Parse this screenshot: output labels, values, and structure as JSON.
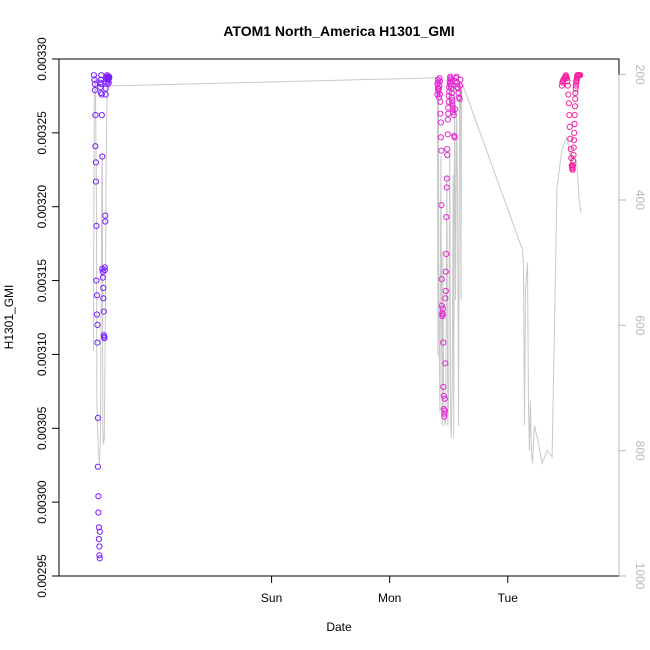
{
  "chart_data": {
    "type": "scatter",
    "title": "ATOM1 North_America H1301_GMI",
    "xlabel": "Date",
    "ylabel": "H1301_GMI",
    "x_unit": "hours since Sat 00:00",
    "xlim": [
      -19.2,
      94.6
    ],
    "ylim": [
      0.00295,
      0.0033
    ],
    "x_ticks": [
      {
        "value": 24,
        "label": "Sun"
      },
      {
        "value": 48,
        "label": "Mon"
      },
      {
        "value": 72,
        "label": "Tue"
      }
    ],
    "y_ticks": [
      0.00295,
      0.003,
      0.00305,
      0.0031,
      0.00315,
      0.0032,
      0.00325,
      0.0033
    ],
    "y_tick_labels": [
      "0.00295",
      "0.00300",
      "0.00305",
      "0.00310",
      "0.00315",
      "0.00320",
      "0.00325",
      "0.00330"
    ],
    "y2_label": "",
    "y2_lim": [
      1000,
      175
    ],
    "y2_ticks": [
      200,
      400,
      600,
      800,
      1000
    ],
    "grid": false,
    "colors": {
      "series_start": "#6a1bff",
      "series_mid": "#d42bff",
      "series_end": "#ff1f8f",
      "pressure_line": "#c8c8c8",
      "right_axis": "#b8b8b8"
    },
    "series": [
      {
        "marker": "open-circle",
        "x": [
          -12.1,
          -12.0,
          -11.9,
          -11.9,
          -11.8,
          -11.8,
          -11.7,
          -11.7,
          -11.6,
          -11.6,
          -11.5,
          -11.5,
          -11.4,
          -11.4,
          -11.3,
          -11.3,
          -11.2,
          -11.2,
          -11.1,
          -11.1,
          -11.0,
          -11.0,
          -10.9,
          -10.9,
          -10.8,
          -10.8,
          -10.7,
          -10.7,
          -10.6,
          -10.6,
          -10.5,
          -10.5,
          -10.4,
          -10.4,
          -10.3,
          -10.3,
          -10.2,
          -10.2,
          -10.1,
          -10.1,
          -10.0,
          -10.0,
          -9.9,
          -9.9,
          -9.8,
          -9.8,
          -9.7,
          -9.7,
          -9.6,
          -9.6,
          -9.5,
          -9.4,
          -9.4,
          -9.3,
          -9.3,
          -9.2,
          -9.2,
          -9.1,
          -9.0,
          -9.0,
          57.7,
          57.7,
          57.8,
          57.8,
          57.9,
          57.9,
          58.0,
          58.0,
          58.1,
          58.1,
          58.2,
          58.2,
          58.3,
          58.3,
          58.4,
          58.4,
          58.5,
          58.5,
          58.6,
          58.6,
          58.7,
          58.7,
          58.8,
          58.8,
          58.9,
          58.9,
          59.0,
          59.0,
          59.1,
          59.1,
          59.2,
          59.2,
          59.3,
          59.3,
          59.4,
          59.4,
          59.5,
          59.5,
          59.6,
          59.6,
          59.7,
          59.7,
          59.8,
          59.8,
          59.9,
          59.9,
          60.0,
          60.0,
          60.1,
          60.1,
          60.2,
          60.2,
          60.3,
          60.3,
          60.4,
          60.4,
          60.5,
          60.5,
          60.6,
          60.6,
          60.7,
          60.7,
          60.8,
          60.8,
          60.9,
          61.0,
          61.1,
          61.2,
          61.3,
          61.4,
          61.5,
          61.6,
          61.7,
          61.8,
          61.9,
          62.0,
          62.1,
          62.2,
          62.3,
          62.4,
          83.0,
          83.1,
          83.2,
          83.3,
          83.4,
          83.5,
          83.6,
          83.7,
          83.8,
          83.9,
          84.0,
          84.1,
          84.2,
          84.3,
          84.4,
          84.5,
          84.6,
          84.7,
          84.8,
          84.9,
          85.0,
          85.05,
          85.1,
          85.15,
          85.2,
          85.25,
          85.3,
          85.35,
          85.4,
          85.45,
          85.5,
          85.55,
          85.6,
          85.65,
          85.7,
          85.75,
          85.8,
          85.85,
          85.9,
          85.95,
          86.0,
          86.05,
          86.1,
          86.15,
          86.2,
          86.3,
          86.4,
          86.5,
          86.6,
          86.7
        ],
        "y": [
          0.003289,
          0.003286,
          0.003283,
          0.003279,
          0.003262,
          0.003241,
          0.00323,
          0.003217,
          0.003187,
          0.00315,
          0.00314,
          0.003127,
          0.00312,
          0.003108,
          0.003057,
          0.003024,
          0.003004,
          0.002993,
          0.002983,
          0.002975,
          0.00297,
          0.002964,
          0.002962,
          0.00298,
          0.003284,
          0.003281,
          0.003277,
          0.003286,
          0.003289,
          0.003283,
          0.003276,
          0.003262,
          0.003234,
          0.003158,
          0.003156,
          0.003152,
          0.003145,
          0.003138,
          0.003129,
          0.003113,
          0.003111,
          0.003112,
          0.003157,
          0.003159,
          0.00319,
          0.003194,
          0.003276,
          0.00328,
          0.003284,
          0.003287,
          0.003288,
          0.003289,
          0.003286,
          0.003283,
          0.003287,
          0.003288,
          0.003286,
          0.003284,
          0.003288,
          0.003287,
          0.003276,
          0.003283,
          0.003286,
          0.00328,
          0.003284,
          0.003278,
          0.003274,
          0.00328,
          0.003282,
          0.003287,
          0.003285,
          0.003276,
          0.003271,
          0.003263,
          0.003257,
          0.003247,
          0.003238,
          0.003201,
          0.003151,
          0.003133,
          0.003128,
          0.003126,
          0.003131,
          0.003127,
          0.003108,
          0.003078,
          0.003072,
          0.003063,
          0.00306,
          0.003058,
          0.003062,
          0.00307,
          0.003094,
          0.003138,
          0.003143,
          0.003156,
          0.003168,
          0.003193,
          0.003213,
          0.003219,
          0.003235,
          0.003239,
          0.003249,
          0.003259,
          0.003263,
          0.003267,
          0.003271,
          0.003275,
          0.003278,
          0.003281,
          0.003283,
          0.003285,
          0.003287,
          0.003288,
          0.003286,
          0.003284,
          0.003282,
          0.00328,
          0.003277,
          0.003274,
          0.003272,
          0.00327,
          0.003268,
          0.003266,
          0.003264,
          0.003262,
          0.003248,
          0.003247,
          0.003266,
          0.003285,
          0.003287,
          0.003288,
          0.003284,
          0.003281,
          0.00328,
          0.003277,
          0.003274,
          0.003273,
          0.003282,
          0.003286,
          0.003282,
          0.003284,
          0.003285,
          0.003286,
          0.003286,
          0.003287,
          0.003287,
          0.003288,
          0.003289,
          0.003288,
          0.003287,
          0.003285,
          0.003282,
          0.003276,
          0.00327,
          0.003262,
          0.003254,
          0.003246,
          0.003239,
          0.003233,
          0.003228,
          0.003227,
          0.003226,
          0.003225,
          0.003226,
          0.003228,
          0.003231,
          0.003235,
          0.00324,
          0.003245,
          0.00325,
          0.003256,
          0.003262,
          0.003268,
          0.003273,
          0.003277,
          0.00328,
          0.003282,
          0.003284,
          0.003285,
          0.003286,
          0.003287,
          0.003288,
          0.003289,
          0.003289,
          0.003289,
          0.003289,
          0.003289,
          0.003289,
          0.003289
        ]
      }
    ],
    "pressure_line": {
      "x": [
        -12.2,
        -12.1,
        -12.0,
        -11.8,
        -11.6,
        -11.5,
        -11.4,
        -11.2,
        -11.0,
        -10.8,
        -10.6,
        -10.5,
        -10.4,
        -10.3,
        -10.2,
        -10.0,
        -9.8,
        -9.6,
        -9.4,
        -9.2,
        -9.0,
        -8.9,
        57.7,
        57.8,
        57.9,
        58.0,
        58.2,
        58.4,
        58.6,
        58.7,
        58.8,
        59.0,
        59.2,
        59.4,
        59.6,
        59.8,
        60.0,
        60.2,
        60.4,
        60.5,
        60.7,
        60.9,
        61.0,
        61.2,
        61.4,
        61.6,
        61.8,
        62.0,
        62.2,
        62.4,
        62.5,
        62.6,
        62.8,
        75.0,
        75.2,
        75.4,
        75.6,
        75.8,
        76.0,
        76.2,
        76.4,
        76.6,
        76.8,
        77.0,
        77.2,
        77.4,
        78.0,
        79.0,
        80.0,
        81.0,
        82.0,
        83.0,
        84.0,
        84.5,
        85.0,
        85.5,
        86.0,
        86.5,
        86.9
      ],
      "p": [
        640,
        420,
        200,
        210,
        390,
        720,
        760,
        800,
        820,
        790,
        520,
        360,
        330,
        760,
        790,
        780,
        600,
        330,
        220,
        205,
        210,
        218,
        205,
        650,
        220,
        560,
        740,
        330,
        650,
        760,
        480,
        745,
        760,
        740,
        360,
        760,
        710,
        330,
        760,
        780,
        700,
        360,
        780,
        210,
        560,
        260,
        390,
        760,
        220,
        210,
        560,
        230,
        215,
        480,
        510,
        760,
        540,
        520,
        500,
        730,
        800,
        720,
        800,
        820,
        790,
        760,
        780,
        820,
        800,
        810,
        380,
        320,
        300,
        320,
        340,
        330,
        340,
        400,
        420
      ]
    }
  }
}
